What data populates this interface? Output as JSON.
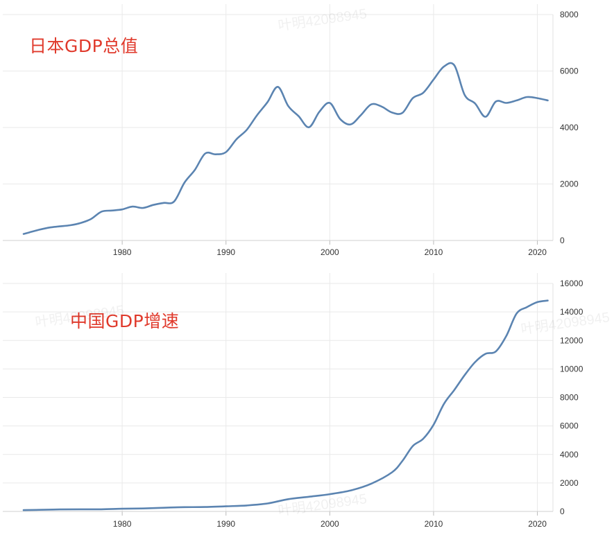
{
  "colors": {
    "line": "#5b84b1",
    "grid": "#e9e9e9",
    "title": "#e0392b",
    "tick_text": "#333333"
  },
  "watermark_text": "叶明42098945",
  "chart_data": [
    {
      "type": "line",
      "title": "日本GDP总值",
      "xlabel": "",
      "ylabel": "",
      "xlim": [
        1970.5,
        2021.5
      ],
      "ylim": [
        0,
        8000
      ],
      "x_ticks": [
        1980,
        1990,
        2000,
        2010,
        2020
      ],
      "x_tick_labels": [
        "1980",
        "1990",
        "2000",
        "2010",
        "2020"
      ],
      "y_ticks": [
        0,
        2000,
        4000,
        6000,
        8000
      ],
      "y_tick_labels": [
        "0",
        "2000",
        "4000",
        "6000",
        "8000"
      ],
      "grid": true,
      "y_axis_side": "right",
      "series": [
        {
          "x": [
            1970.5,
            1971,
            1972,
            1973,
            1974,
            1975,
            1976,
            1977,
            1978,
            1979,
            1980,
            1981,
            1982,
            1983,
            1984,
            1985,
            1986,
            1987,
            1988,
            1989,
            1990,
            1991,
            1992,
            1993,
            1994,
            1995,
            1996,
            1997,
            1998,
            1999,
            2000,
            2001,
            2002,
            2003,
            2004,
            2005,
            2006,
            2007,
            2008,
            2009,
            2010,
            2011,
            2012,
            2013,
            2014,
            2015,
            2016,
            2017,
            2018,
            2019,
            2020,
            2021
          ],
          "y": [
            230,
            280,
            380,
            460,
            500,
            540,
            620,
            760,
            1020,
            1060,
            1100,
            1200,
            1150,
            1260,
            1330,
            1380,
            2050,
            2500,
            3080,
            3050,
            3130,
            3580,
            3920,
            4440,
            4900,
            5440,
            4760,
            4400,
            4010,
            4560,
            4870,
            4300,
            4110,
            4440,
            4820,
            4740,
            4530,
            4520,
            5040,
            5230,
            5700,
            6160,
            6200,
            5150,
            4850,
            4380,
            4920,
            4870,
            4960,
            5080,
            5040,
            4960
          ]
        }
      ]
    },
    {
      "type": "line",
      "title": "中国GDP增速",
      "xlabel": "",
      "ylabel": "",
      "xlim": [
        1970.5,
        2021.5
      ],
      "ylim": [
        0,
        16000
      ],
      "x_ticks": [
        1980,
        1990,
        2000,
        2010,
        2020
      ],
      "x_tick_labels": [
        "1980",
        "1990",
        "2000",
        "2010",
        "2020"
      ],
      "y_ticks": [
        0,
        2000,
        4000,
        6000,
        8000,
        10000,
        12000,
        14000,
        16000
      ],
      "y_tick_labels": [
        "0",
        "2000",
        "4000",
        "6000",
        "8000",
        "10000",
        "12000",
        "14000",
        "16000"
      ],
      "grid": true,
      "y_axis_side": "right",
      "series": [
        {
          "x": [
            1970.5,
            1972,
            1974,
            1976,
            1978,
            1980,
            1982,
            1984,
            1986,
            1988,
            1990,
            1992,
            1994,
            1996,
            1998,
            2000,
            2002,
            2004,
            2006,
            2007,
            2008,
            2009,
            2010,
            2011,
            2012,
            2013,
            2014,
            2015,
            2016,
            2017,
            2018,
            2019,
            2020,
            2021
          ],
          "y": [
            90,
            110,
            140,
            150,
            150,
            190,
            210,
            260,
            300,
            310,
            360,
            420,
            560,
            860,
            1030,
            1210,
            1470,
            1950,
            2750,
            3550,
            4590,
            5100,
            6090,
            7550,
            8530,
            9570,
            10480,
            11060,
            11230,
            12310,
            13890,
            14340,
            14690,
            14800
          ]
        }
      ]
    }
  ]
}
